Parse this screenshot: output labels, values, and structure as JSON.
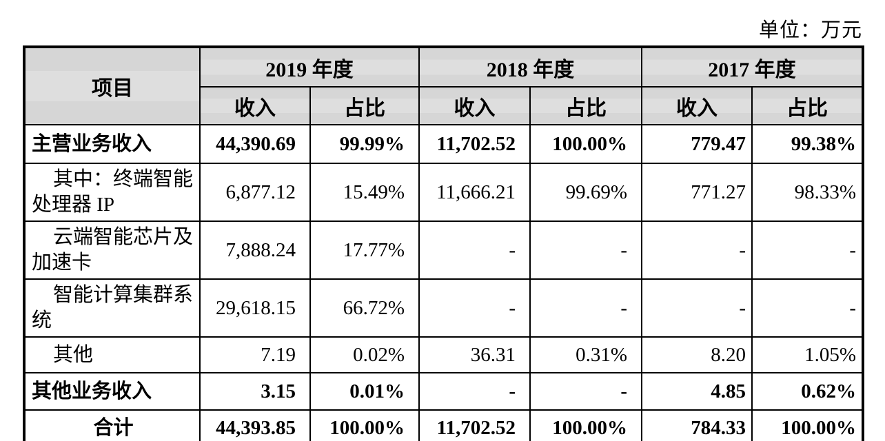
{
  "unit_label": "单位：万元",
  "colors": {
    "header_bg": "#d8d8d8",
    "border": "#000000",
    "text": "#000000",
    "page_bg": "#ffffff"
  },
  "table": {
    "header": {
      "item": "项目",
      "year_groups": [
        {
          "label": "2019 年度"
        },
        {
          "label": "2018 年度"
        },
        {
          "label": "2017 年度"
        }
      ],
      "sub_columns": [
        "收入",
        "占比"
      ]
    },
    "rows": [
      {
        "label": "主营业务收入",
        "style": "bold",
        "cells": [
          "44,390.69",
          "99.99%",
          "11,702.52",
          "100.00%",
          "779.47",
          "99.38%"
        ]
      },
      {
        "label": "其中：终端智能\n处理器 IP",
        "style": "indent",
        "cells": [
          "6,877.12",
          "15.49%",
          "11,666.21",
          "99.69%",
          "771.27",
          "98.33%"
        ]
      },
      {
        "label": "云端智能芯片及\n加速卡",
        "style": "indent",
        "cells": [
          "7,888.24",
          "17.77%",
          "-",
          "-",
          "-",
          "-"
        ]
      },
      {
        "label": "智能计算集群系\n统",
        "style": "indent",
        "cells": [
          "29,618.15",
          "66.72%",
          "-",
          "-",
          "-",
          "-"
        ]
      },
      {
        "label": "其他",
        "style": "indent",
        "cells": [
          "7.19",
          "0.02%",
          "36.31",
          "0.31%",
          "8.20",
          "1.05%"
        ]
      },
      {
        "label": "其他业务收入",
        "style": "bold",
        "cells": [
          "3.15",
          "0.01%",
          "-",
          "-",
          "4.85",
          "0.62%"
        ]
      },
      {
        "label": "合计",
        "style": "bold-center",
        "cells": [
          "44,393.85",
          "100.00%",
          "11,702.52",
          "100.00%",
          "784.33",
          "100.00%"
        ]
      }
    ]
  }
}
